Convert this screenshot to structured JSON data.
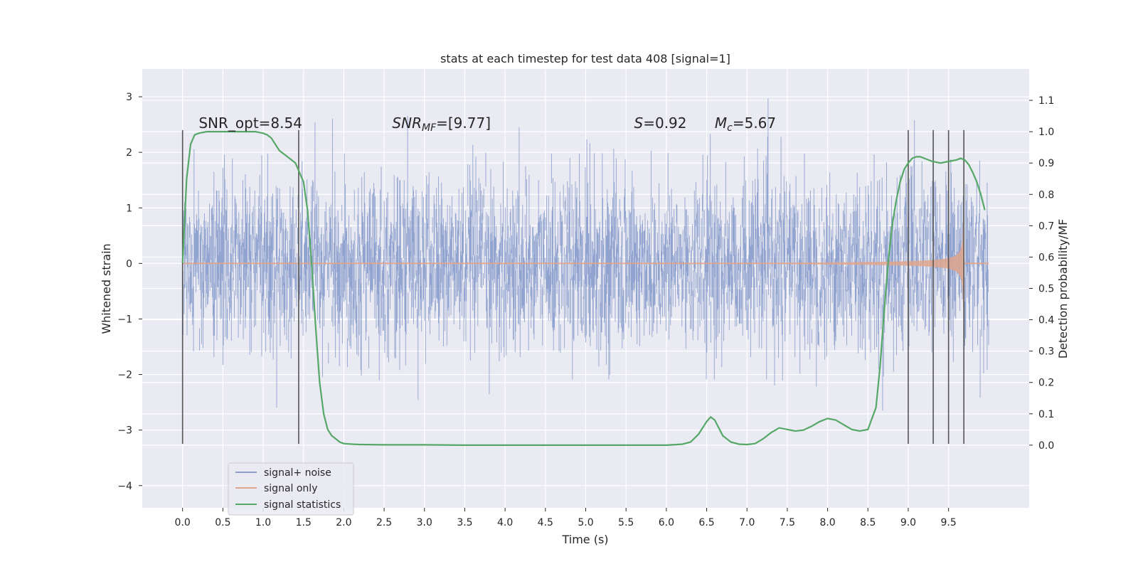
{
  "chart_data": {
    "type": "line",
    "title": "stats at each timestep for test data 408 [signal=1]",
    "xlabel": "Time (s)",
    "ylabel": "Whitened strain",
    "ylabel_right": "Detection probability/MF",
    "xlim": [
      -0.5,
      10.5
    ],
    "ylim": [
      -4.4,
      3.5
    ],
    "ylim_right": [
      -0.2,
      1.2
    ],
    "x_ticks": [
      "0.0",
      "0.5",
      "1.0",
      "1.5",
      "2.0",
      "2.5",
      "3.0",
      "3.5",
      "4.0",
      "4.5",
      "5.0",
      "5.5",
      "6.0",
      "6.5",
      "7.0",
      "7.5",
      "8.0",
      "8.5",
      "9.0",
      "9.5"
    ],
    "y_ticks": [
      "3",
      "2",
      "1",
      "0",
      "−1",
      "−2",
      "−3",
      "−4"
    ],
    "y_ticks_right": [
      "1.1",
      "1.0",
      "0.9",
      "0.8",
      "0.7",
      "0.6",
      "0.5",
      "0.4",
      "0.3",
      "0.2",
      "0.1",
      "0.0"
    ],
    "grid": true,
    "legend_placement": "lower-left",
    "colors": {
      "background": "#eaeaf2",
      "noise": "#8c9fcc",
      "signal": "#e0a68d",
      "statistics": "#55a868",
      "vlines": "#555555"
    },
    "annotations": [
      {
        "text": "SNR_opt=8.54",
        "x": 0.2,
        "y": 2.5
      },
      {
        "text": "SNR",
        "sub": "MF",
        "tail": "=[9.77]",
        "italic": true,
        "x": 2.6,
        "y": 2.5
      },
      {
        "text": "S",
        "tail": "=0.92",
        "italic": true,
        "x": 5.6,
        "y": 2.5
      },
      {
        "text": "M",
        "sub": "c",
        "tail": "=5.67",
        "italic": true,
        "x": 6.6,
        "y": 2.5
      }
    ],
    "vlines": [
      {
        "x": 0.0,
        "ymin": -3.25,
        "ymax": 2.4
      },
      {
        "x": 1.44,
        "ymin": -3.25,
        "ymax": 2.4
      },
      {
        "x": 9.0,
        "ymin": -3.25,
        "ymax": 2.4
      },
      {
        "x": 9.31,
        "ymin": -3.25,
        "ymax": 2.4
      },
      {
        "x": 9.5,
        "ymin": -3.25,
        "ymax": 2.4
      },
      {
        "x": 9.69,
        "ymin": -3.25,
        "ymax": 2.4
      }
    ],
    "series": [
      {
        "name": "signal+ noise",
        "x_range": [
          0.0,
          10.0
        ],
        "envelope_sd": 0.75
      },
      {
        "name": "signal only",
        "x_range": [
          0.0,
          10.0
        ],
        "chirp_end": 9.69,
        "peak_amplitude": 0.9
      },
      {
        "name": "signal statistics",
        "axis": "right",
        "x": [
          0.0,
          0.05,
          0.1,
          0.15,
          0.2,
          0.3,
          0.5,
          0.7,
          0.9,
          1.0,
          1.05,
          1.1,
          1.2,
          1.3,
          1.4,
          1.5,
          1.55,
          1.6,
          1.65,
          1.7,
          1.75,
          1.8,
          1.85,
          1.9,
          1.95,
          2.0,
          2.1,
          2.2,
          2.5,
          3.0,
          3.5,
          4.0,
          4.5,
          5.0,
          5.5,
          6.0,
          6.2,
          6.3,
          6.4,
          6.5,
          6.55,
          6.6,
          6.65,
          6.7,
          6.8,
          6.9,
          7.0,
          7.1,
          7.2,
          7.3,
          7.4,
          7.5,
          7.6,
          7.7,
          7.8,
          7.9,
          8.0,
          8.1,
          8.2,
          8.3,
          8.4,
          8.5,
          8.6,
          8.65,
          8.7,
          8.75,
          8.8,
          8.85,
          8.9,
          8.95,
          9.0,
          9.05,
          9.1,
          9.15,
          9.2,
          9.3,
          9.4,
          9.5,
          9.6,
          9.65,
          9.7,
          9.75,
          9.8,
          9.85,
          9.9,
          9.95
        ],
        "values": [
          0.58,
          0.85,
          0.96,
          0.99,
          0.995,
          1.0,
          1.0,
          1.0,
          1.0,
          0.995,
          0.99,
          0.98,
          0.94,
          0.92,
          0.9,
          0.84,
          0.75,
          0.58,
          0.38,
          0.2,
          0.1,
          0.05,
          0.03,
          0.02,
          0.01,
          0.005,
          0.003,
          0.002,
          0.001,
          0.001,
          0.0,
          0.0,
          0.0,
          0.0,
          0.0,
          0.0,
          0.003,
          0.01,
          0.035,
          0.075,
          0.09,
          0.08,
          0.055,
          0.03,
          0.01,
          0.003,
          0.002,
          0.005,
          0.02,
          0.04,
          0.055,
          0.05,
          0.045,
          0.048,
          0.06,
          0.075,
          0.085,
          0.08,
          0.065,
          0.05,
          0.045,
          0.05,
          0.12,
          0.25,
          0.42,
          0.58,
          0.7,
          0.78,
          0.84,
          0.88,
          0.9,
          0.915,
          0.92,
          0.92,
          0.915,
          0.905,
          0.9,
          0.905,
          0.91,
          0.915,
          0.91,
          0.895,
          0.87,
          0.84,
          0.8,
          0.75
        ]
      }
    ]
  }
}
